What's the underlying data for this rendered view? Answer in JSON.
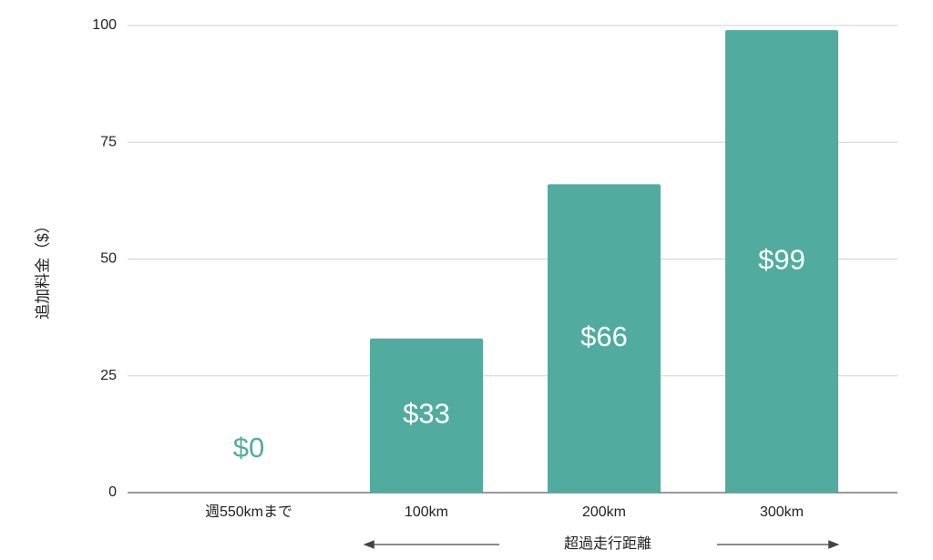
{
  "chart_data": {
    "type": "bar",
    "categories": [
      "週550kmまで",
      "100km",
      "200km",
      "300km"
    ],
    "values": [
      0,
      33,
      66,
      99
    ],
    "value_labels": [
      "$0",
      "$33",
      "$66",
      "$99"
    ],
    "color": "#52ab9f",
    "y_label": "追加料金（$）",
    "x_annotation": "超過走行距離",
    "ylim": [
      0,
      100
    ],
    "yticks": [
      0,
      25,
      50,
      75,
      100
    ],
    "grid": true
  }
}
